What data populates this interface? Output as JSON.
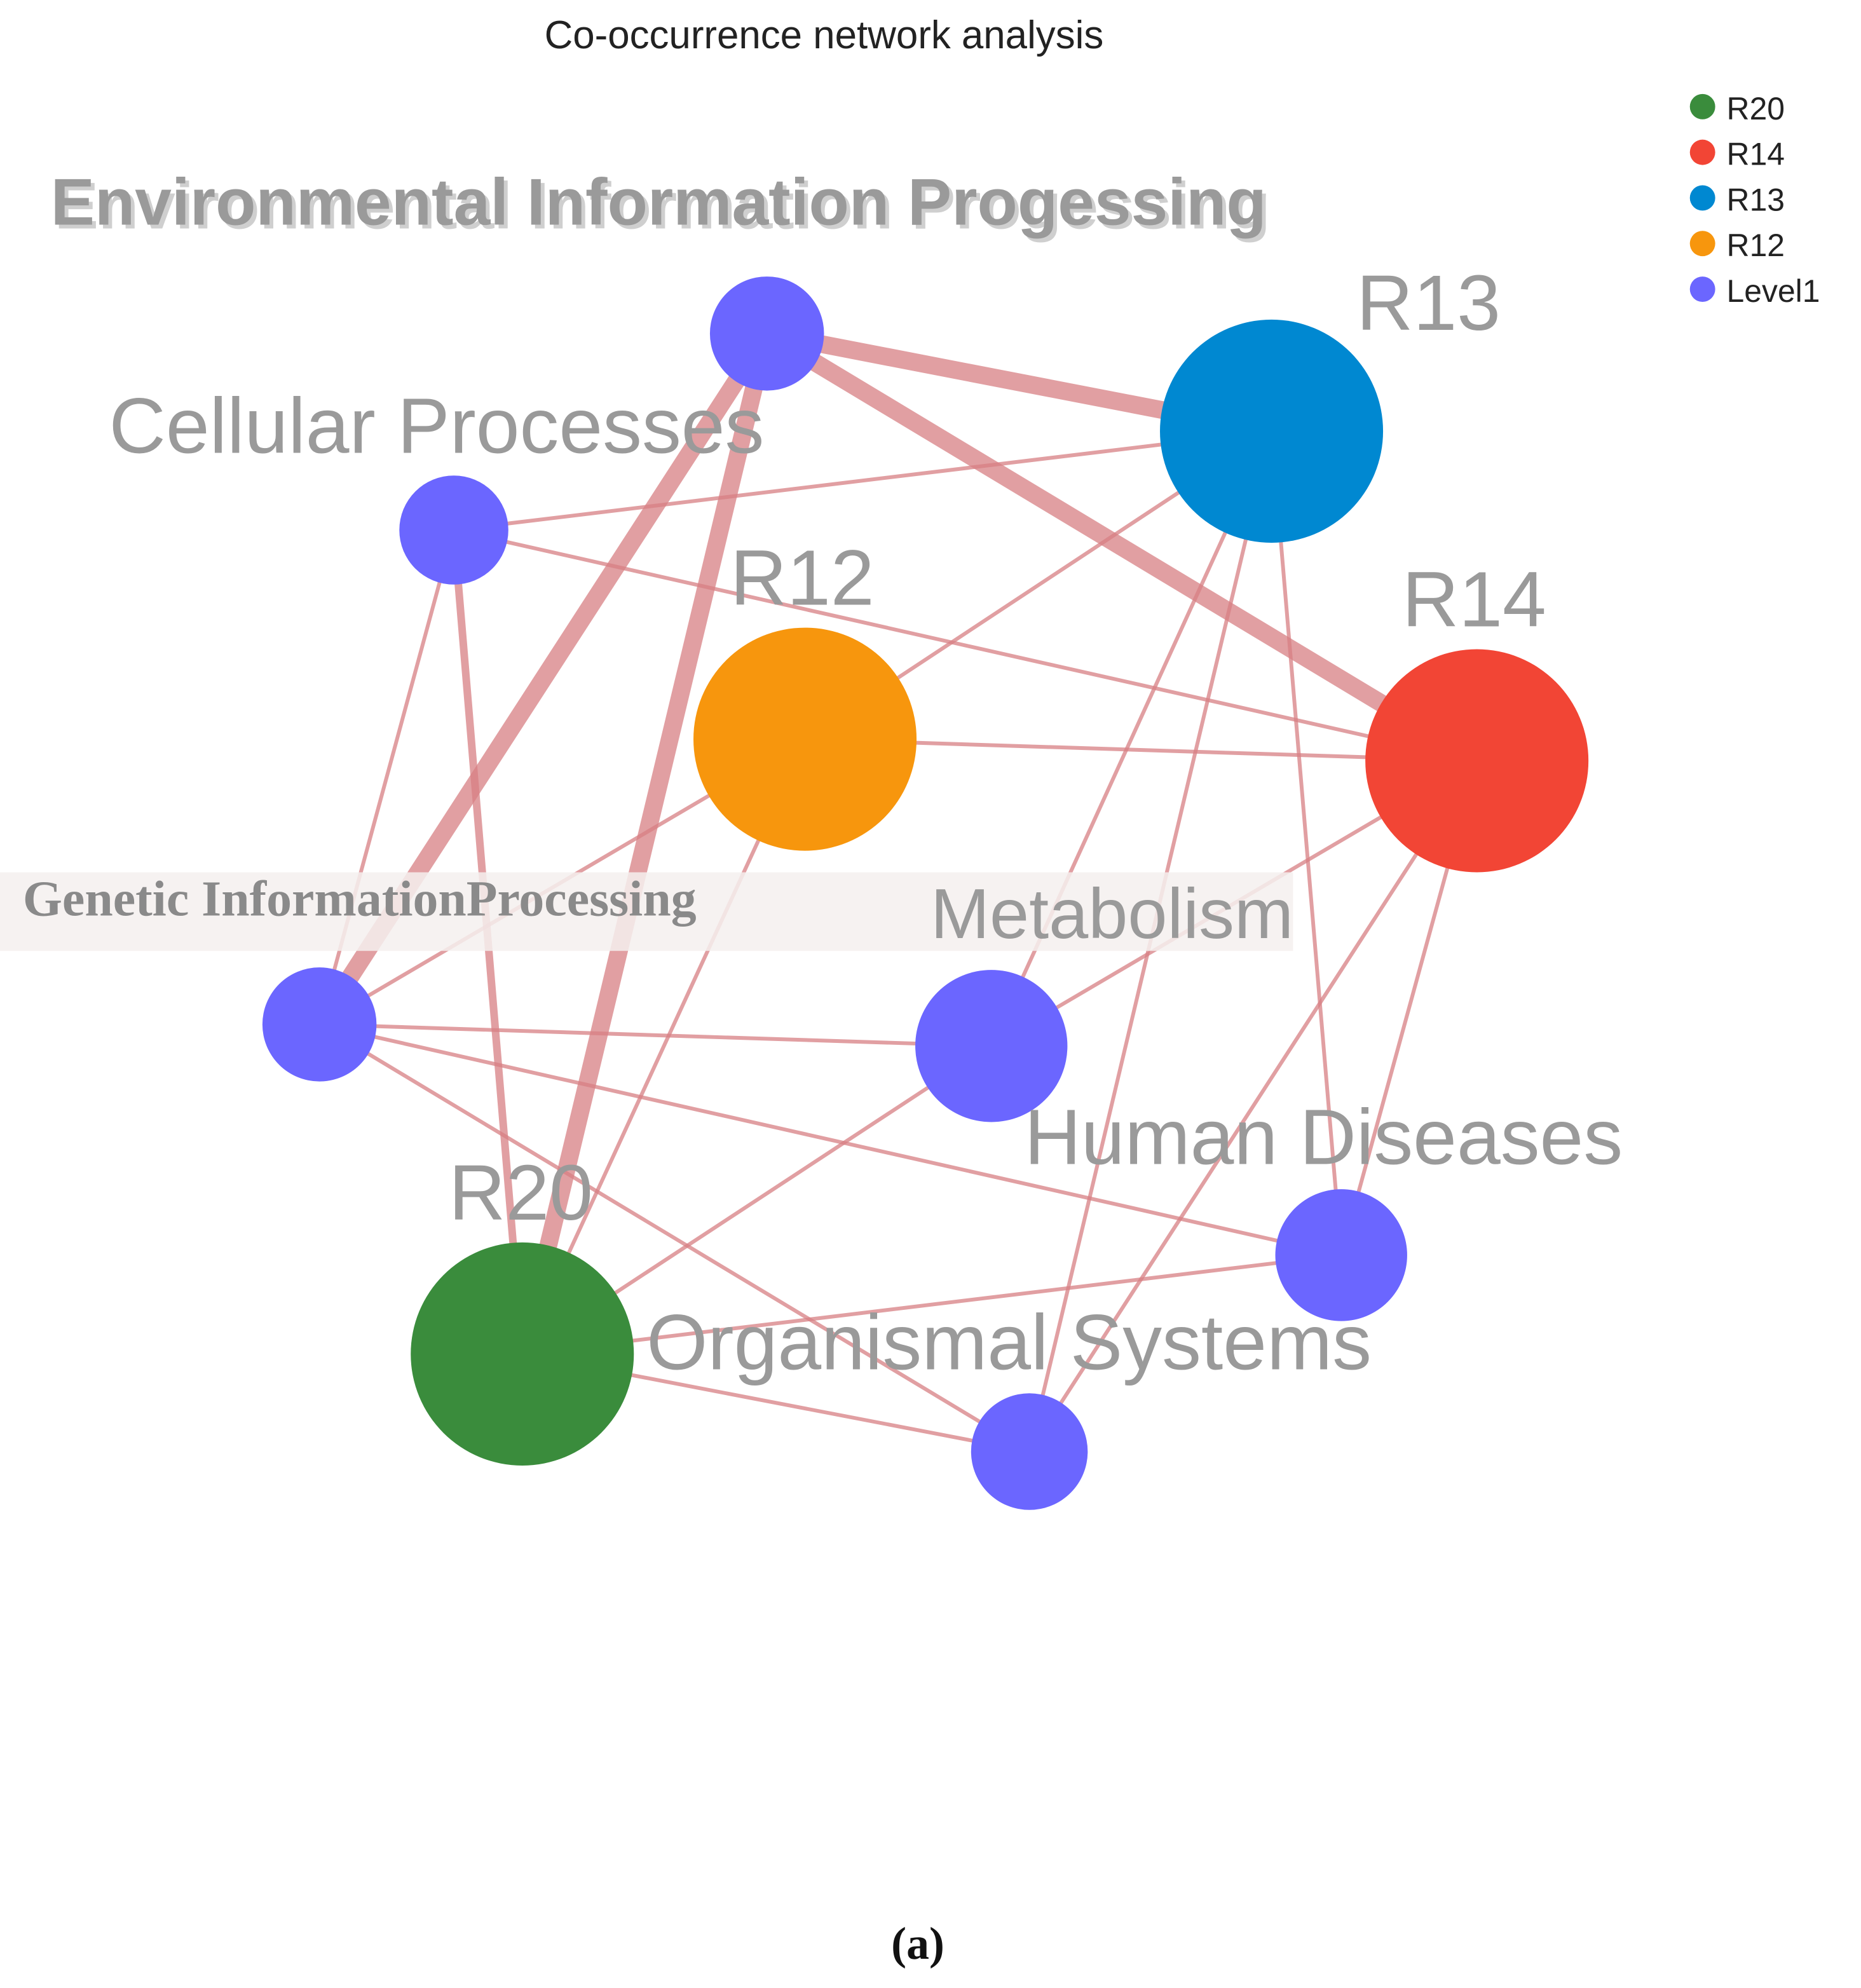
{
  "title": "Co-occurrence network analysis",
  "legend": [
    "R20",
    "R14",
    "R13",
    "R12",
    "Level1"
  ],
  "nodes": [
    "Environmental Information Progessing",
    "Cellular Processes",
    "R12",
    "R13",
    "R14",
    "Genetic InformationProcessing",
    "Metabolism",
    "Human Diseases",
    "R20",
    "Organismal Systems"
  ],
  "caption": "(a)"
}
